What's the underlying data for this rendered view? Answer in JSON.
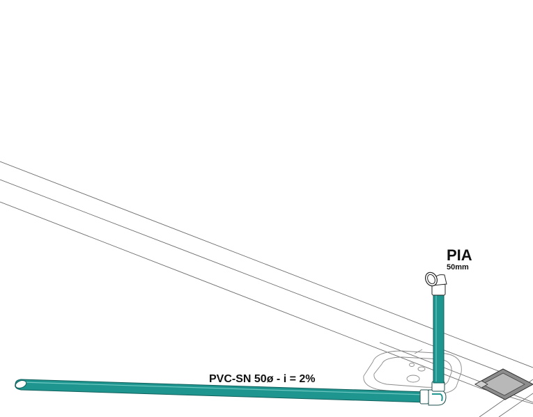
{
  "drawing": {
    "fixture_label": "PIA",
    "fixture_size": "50mm",
    "pipe_label": "PVC-SN 50ø - i = 2%",
    "pipe_color": "#1e958f",
    "pipe_edge_color": "#0f5f5b",
    "line_color": "#6b6b6b",
    "drain_color": "#8c8c8c"
  }
}
